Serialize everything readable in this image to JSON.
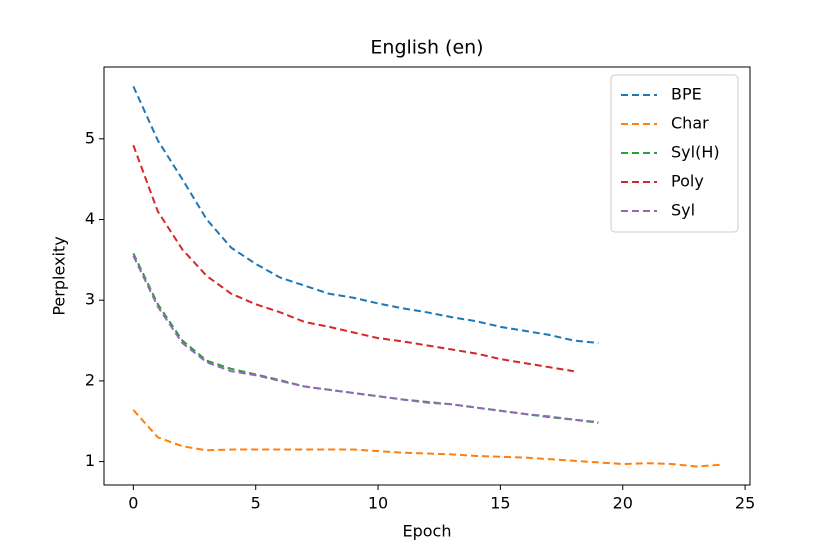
{
  "chart_data": {
    "type": "line",
    "title": "English (en)",
    "x_label": "Epoch",
    "y_label": "Perplexity",
    "xlim": [
      -1.2,
      25.2
    ],
    "ylim": [
      0.71,
      5.89
    ],
    "xticks": [
      0,
      5,
      10,
      15,
      20,
      25
    ],
    "yticks": [
      1,
      2,
      3,
      4,
      5
    ],
    "legend": "upper right",
    "line_style": "dashed",
    "series": [
      {
        "name": "BPE",
        "color": "#1f77b4",
        "x": [
          0,
          1,
          2,
          3,
          4,
          5,
          6,
          7,
          8,
          9,
          10,
          11,
          12,
          13,
          14,
          15,
          16,
          17,
          18,
          19
        ],
        "values": [
          5.65,
          4.98,
          4.5,
          4.0,
          3.65,
          3.45,
          3.28,
          3.18,
          3.08,
          3.03,
          2.96,
          2.9,
          2.85,
          2.79,
          2.74,
          2.67,
          2.62,
          2.57,
          2.5,
          2.47
        ]
      },
      {
        "name": "Char",
        "color": "#ff7f0e",
        "x": [
          0,
          1,
          2,
          3,
          4,
          5,
          6,
          7,
          8,
          9,
          10,
          11,
          12,
          13,
          14,
          15,
          16,
          17,
          18,
          19,
          20,
          21,
          22,
          23,
          24
        ],
        "values": [
          1.64,
          1.3,
          1.19,
          1.14,
          1.15,
          1.15,
          1.15,
          1.15,
          1.15,
          1.15,
          1.13,
          1.11,
          1.1,
          1.09,
          1.07,
          1.06,
          1.05,
          1.03,
          1.01,
          0.99,
          0.97,
          0.98,
          0.97,
          0.94,
          0.96
        ]
      },
      {
        "name": "Syl(H)",
        "color": "#2ca02c",
        "x": [
          0,
          1,
          2,
          3,
          4,
          5,
          6,
          7,
          8,
          9,
          10,
          11,
          12,
          13,
          14,
          15,
          16,
          17,
          18,
          19
        ],
        "values": [
          3.58,
          2.95,
          2.5,
          2.25,
          2.15,
          2.08,
          2.01,
          1.93,
          1.89,
          1.85,
          1.81,
          1.77,
          1.74,
          1.71,
          1.67,
          1.63,
          1.59,
          1.55,
          1.52,
          1.48
        ]
      },
      {
        "name": "Poly",
        "color": "#d62728",
        "x": [
          0,
          1,
          2,
          3,
          4,
          5,
          6,
          7,
          8,
          9,
          10,
          11,
          12,
          13,
          14,
          15,
          16,
          17,
          18
        ],
        "values": [
          4.92,
          4.1,
          3.63,
          3.3,
          3.08,
          2.95,
          2.85,
          2.73,
          2.67,
          2.6,
          2.53,
          2.49,
          2.44,
          2.39,
          2.34,
          2.27,
          2.22,
          2.17,
          2.12
        ]
      },
      {
        "name": "Syl",
        "color": "#9467bd",
        "x": [
          0,
          1,
          2,
          3,
          4,
          5,
          6,
          7,
          8,
          9,
          10,
          11,
          12,
          13,
          14,
          15,
          16,
          17,
          18,
          19
        ],
        "values": [
          3.55,
          2.92,
          2.47,
          2.23,
          2.12,
          2.07,
          2.0,
          1.93,
          1.89,
          1.85,
          1.81,
          1.77,
          1.73,
          1.71,
          1.67,
          1.63,
          1.59,
          1.56,
          1.52,
          1.49
        ]
      }
    ]
  }
}
